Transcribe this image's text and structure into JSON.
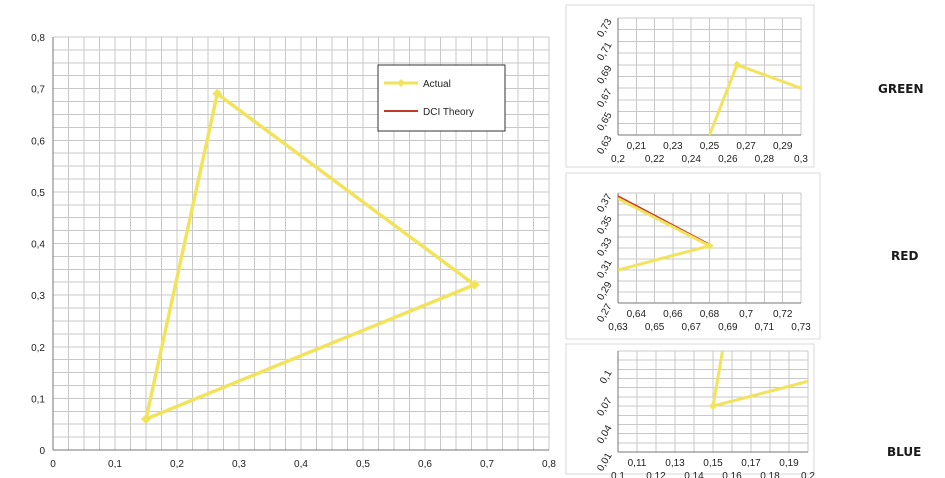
{
  "chart_data": [
    {
      "type": "line",
      "panel": "main",
      "xlim": [
        0,
        0.8
      ],
      "ylim": [
        0,
        0.8
      ],
      "xticks": [
        "0",
        "0,1",
        "0,2",
        "0,3",
        "0,4",
        "0,5",
        "0,6",
        "0,7",
        "0,8"
      ],
      "yticks": [
        "0",
        "0,1",
        "0,2",
        "0,3",
        "0,4",
        "0,5",
        "0,6",
        "0,7",
        "0,8"
      ],
      "grid": true,
      "legend_position": "top-right",
      "series": [
        {
          "name": "Actual",
          "color": "#f2e35c",
          "marker": "diamond",
          "x": [
            0.265,
            0.68,
            0.15,
            0.265
          ],
          "y": [
            0.69,
            0.32,
            0.06,
            0.69
          ]
        },
        {
          "name": "DCI Theory",
          "color": "#c0392b",
          "x": [
            0.265,
            0.68,
            0.15,
            0.265
          ],
          "y": [
            0.69,
            0.32,
            0.06,
            0.69
          ]
        }
      ]
    },
    {
      "type": "line",
      "panel": "green",
      "label": "GREEN",
      "xlim": [
        0.2,
        0.3
      ],
      "ylim": [
        0.63,
        0.73
      ],
      "xticks_upper": [
        "0,21",
        "0,23",
        "0,25",
        "0,27",
        "0,29"
      ],
      "xticks_lower": [
        "0,2",
        "0,22",
        "0,24",
        "0,26",
        "0,28",
        "0,3"
      ],
      "yticks": [
        "0,63",
        "0,65",
        "0,67",
        "0,69",
        "0,71",
        "0,73"
      ],
      "grid": true,
      "series": [
        {
          "name": "Actual",
          "color": "#f2e35c",
          "x": [
            0.25,
            0.265,
            0.3
          ],
          "y": [
            0.63,
            0.69,
            0.67
          ]
        }
      ]
    },
    {
      "type": "line",
      "panel": "red",
      "label": "RED",
      "xlim": [
        0.63,
        0.73
      ],
      "ylim": [
        0.27,
        0.37
      ],
      "xticks_upper": [
        "0,64",
        "0,66",
        "0,68",
        "0,7",
        "0,72"
      ],
      "xticks_lower": [
        "0,63",
        "0,65",
        "0,67",
        "0,69",
        "0,71",
        "0,73"
      ],
      "yticks": [
        "0,27",
        "0,29",
        "0,31",
        "0,33",
        "0,35",
        "0,37"
      ],
      "grid": true,
      "series": [
        {
          "name": "Actual",
          "color": "#f2e35c",
          "x": [
            0.63,
            0.68,
            0.63
          ],
          "y": [
            0.365,
            0.322,
            0.3
          ]
        },
        {
          "name": "DCI Theory",
          "color": "#c0392b",
          "x": [
            0.63,
            0.68
          ],
          "y": [
            0.367,
            0.323
          ]
        }
      ]
    },
    {
      "type": "line",
      "panel": "blue",
      "label": "BLUE",
      "xlim": [
        0.1,
        0.2
      ],
      "ylim": [
        0.01,
        0.12
      ],
      "xticks_upper": [
        "0,11",
        "0,13",
        "0,15",
        "0,17",
        "0,19"
      ],
      "xticks_lower": [
        "0,1",
        "0,12",
        "0,14",
        "0,16",
        "0,18",
        "0,2"
      ],
      "yticks": [
        "0,01",
        "0,04",
        "0,07",
        "0,1"
      ],
      "grid": true,
      "series": [
        {
          "name": "Actual",
          "color": "#f2e35c",
          "x": [
            0.155,
            0.15,
            0.2
          ],
          "y": [
            0.12,
            0.06,
            0.087
          ]
        }
      ]
    }
  ]
}
